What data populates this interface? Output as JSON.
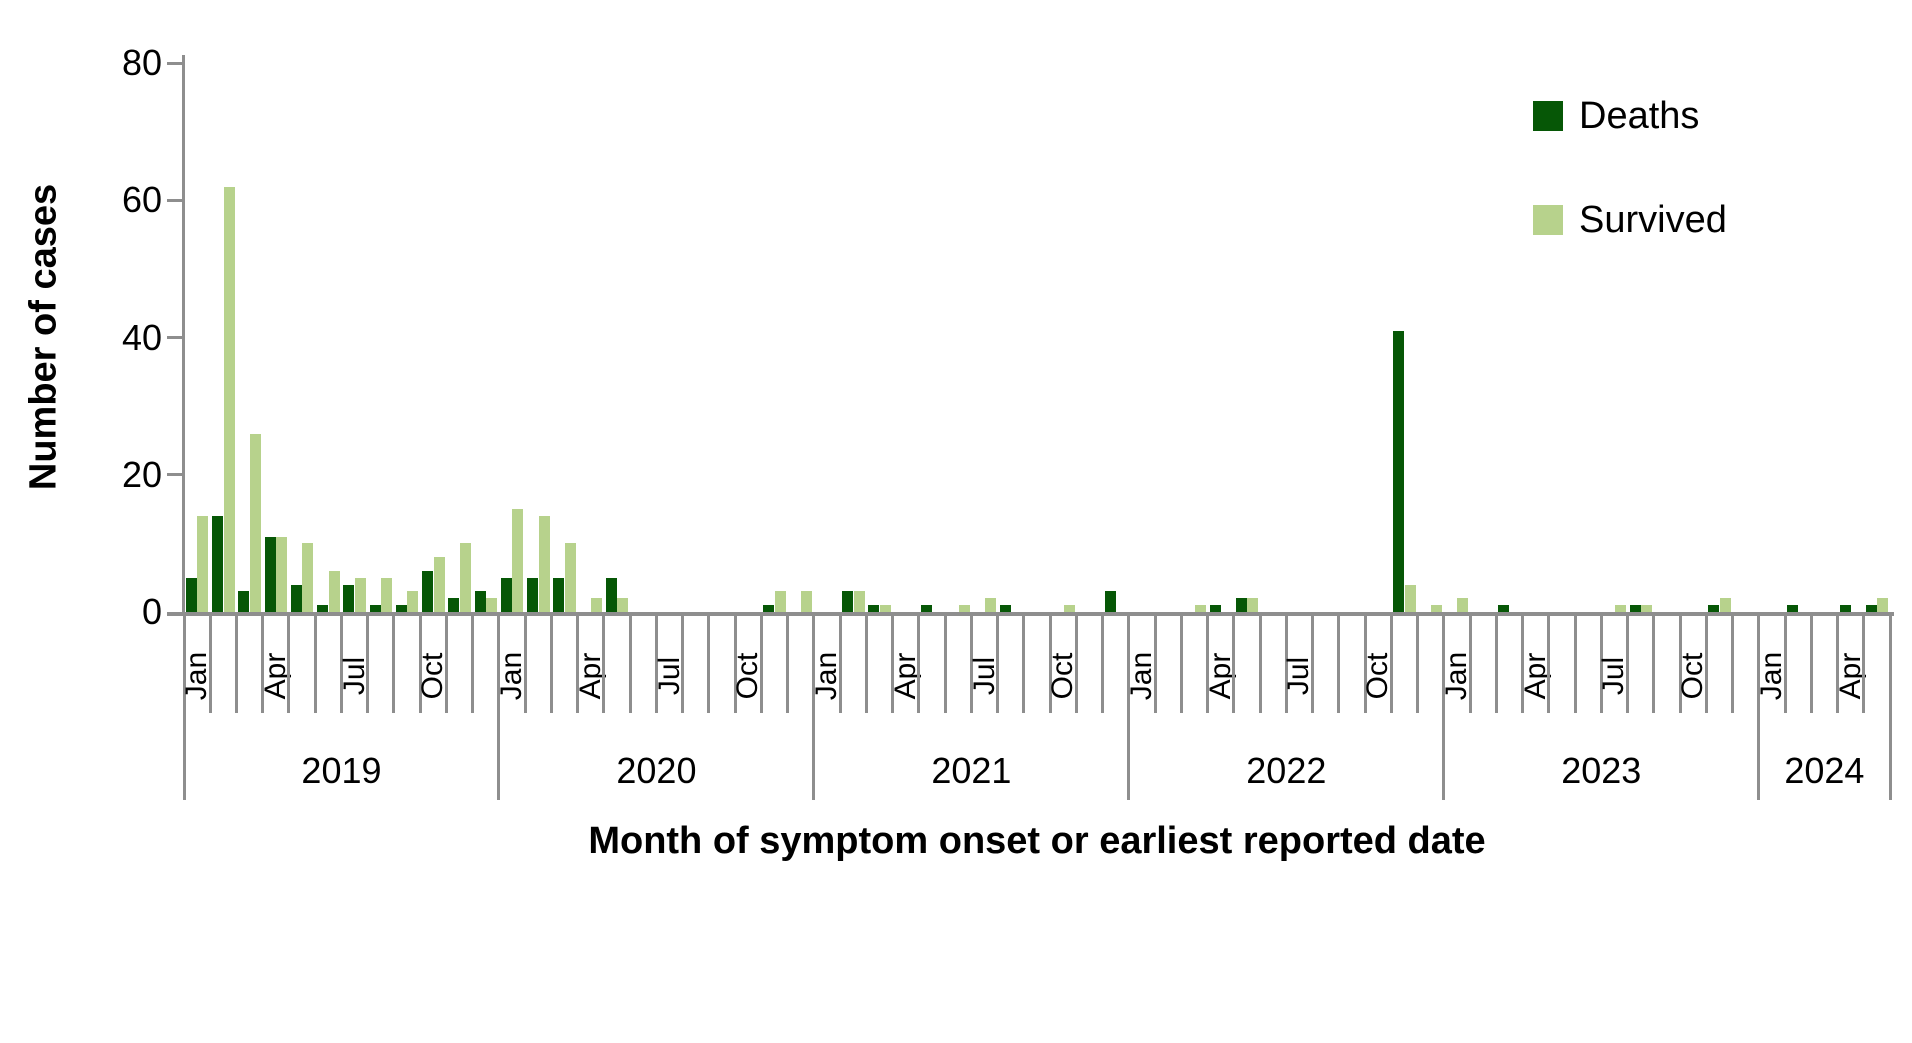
{
  "axis_color": "#8e8e8e",
  "legend": {
    "items": [
      {
        "label": "Deaths",
        "color": "#065706"
      },
      {
        "label": "Survived",
        "color": "#b7d28c"
      }
    ]
  },
  "chart_data": {
    "type": "bar",
    "title": "",
    "ylabel": "Number of cases",
    "xlabel": "Month of symptom onset or earliest reported date",
    "ylim": [
      0,
      80
    ],
    "y_ticks": [
      0,
      20,
      40,
      60,
      80
    ],
    "grid": false,
    "legend_position": "top-right",
    "x_quarter_labels": [
      "Jan",
      "Apr",
      "Jul",
      "Oct"
    ],
    "years": [
      {
        "label": "2019",
        "months": 12
      },
      {
        "label": "2020",
        "months": 12
      },
      {
        "label": "2021",
        "months": 12
      },
      {
        "label": "2022",
        "months": 12
      },
      {
        "label": "2023",
        "months": 12
      },
      {
        "label": "2024",
        "months": 5
      }
    ],
    "x": [
      "Jan 2019",
      "Feb 2019",
      "Mar 2019",
      "Apr 2019",
      "May 2019",
      "Jun 2019",
      "Jul 2019",
      "Aug 2019",
      "Sep 2019",
      "Oct 2019",
      "Nov 2019",
      "Dec 2019",
      "Jan 2020",
      "Feb 2020",
      "Mar 2020",
      "Apr 2020",
      "May 2020",
      "Jun 2020",
      "Jul 2020",
      "Aug 2020",
      "Sep 2020",
      "Oct 2020",
      "Nov 2020",
      "Dec 2020",
      "Jan 2021",
      "Feb 2021",
      "Mar 2021",
      "Apr 2021",
      "May 2021",
      "Jun 2021",
      "Jul 2021",
      "Aug 2021",
      "Sep 2021",
      "Oct 2021",
      "Nov 2021",
      "Dec 2021",
      "Jan 2022",
      "Feb 2022",
      "Mar 2022",
      "Apr 2022",
      "May 2022",
      "Jun 2022",
      "Jul 2022",
      "Aug 2022",
      "Sep 2022",
      "Oct 2022",
      "Nov 2022",
      "Dec 2022",
      "Jan 2023",
      "Feb 2023",
      "Mar 2023",
      "Apr 2023",
      "May 2023",
      "Jun 2023",
      "Jul 2023",
      "Aug 2023",
      "Sep 2023",
      "Oct 2023",
      "Nov 2023",
      "Dec 2023",
      "Jan 2024",
      "Feb 2024",
      "Mar 2024",
      "Apr 2024",
      "May 2024"
    ],
    "series": [
      {
        "name": "Deaths",
        "color": "#065706",
        "values": [
          5,
          14,
          3,
          11,
          4,
          1,
          4,
          1,
          1,
          6,
          2,
          3,
          5,
          5,
          5,
          0,
          5,
          0,
          0,
          0,
          0,
          0,
          1,
          0,
          0,
          3,
          1,
          0,
          1,
          0,
          0,
          1,
          0,
          0,
          0,
          3,
          0,
          0,
          0,
          1,
          2,
          0,
          0,
          0,
          0,
          0,
          41,
          0,
          0,
          0,
          1,
          0,
          0,
          0,
          0,
          1,
          0,
          0,
          1,
          0,
          0,
          1,
          0,
          1,
          1
        ]
      },
      {
        "name": "Survived",
        "color": "#b7d28c",
        "values": [
          14,
          62,
          26,
          11,
          10,
          6,
          5,
          5,
          3,
          8,
          10,
          2,
          15,
          14,
          10,
          2,
          2,
          0,
          0,
          0,
          0,
          0,
          3,
          3,
          0,
          3,
          1,
          0,
          0,
          1,
          2,
          0,
          0,
          1,
          0,
          0,
          0,
          0,
          1,
          0,
          2,
          0,
          0,
          0,
          0,
          0,
          4,
          1,
          2,
          0,
          0,
          0,
          0,
          0,
          1,
          1,
          0,
          0,
          2,
          0,
          0,
          0,
          0,
          0,
          2
        ]
      }
    ]
  }
}
